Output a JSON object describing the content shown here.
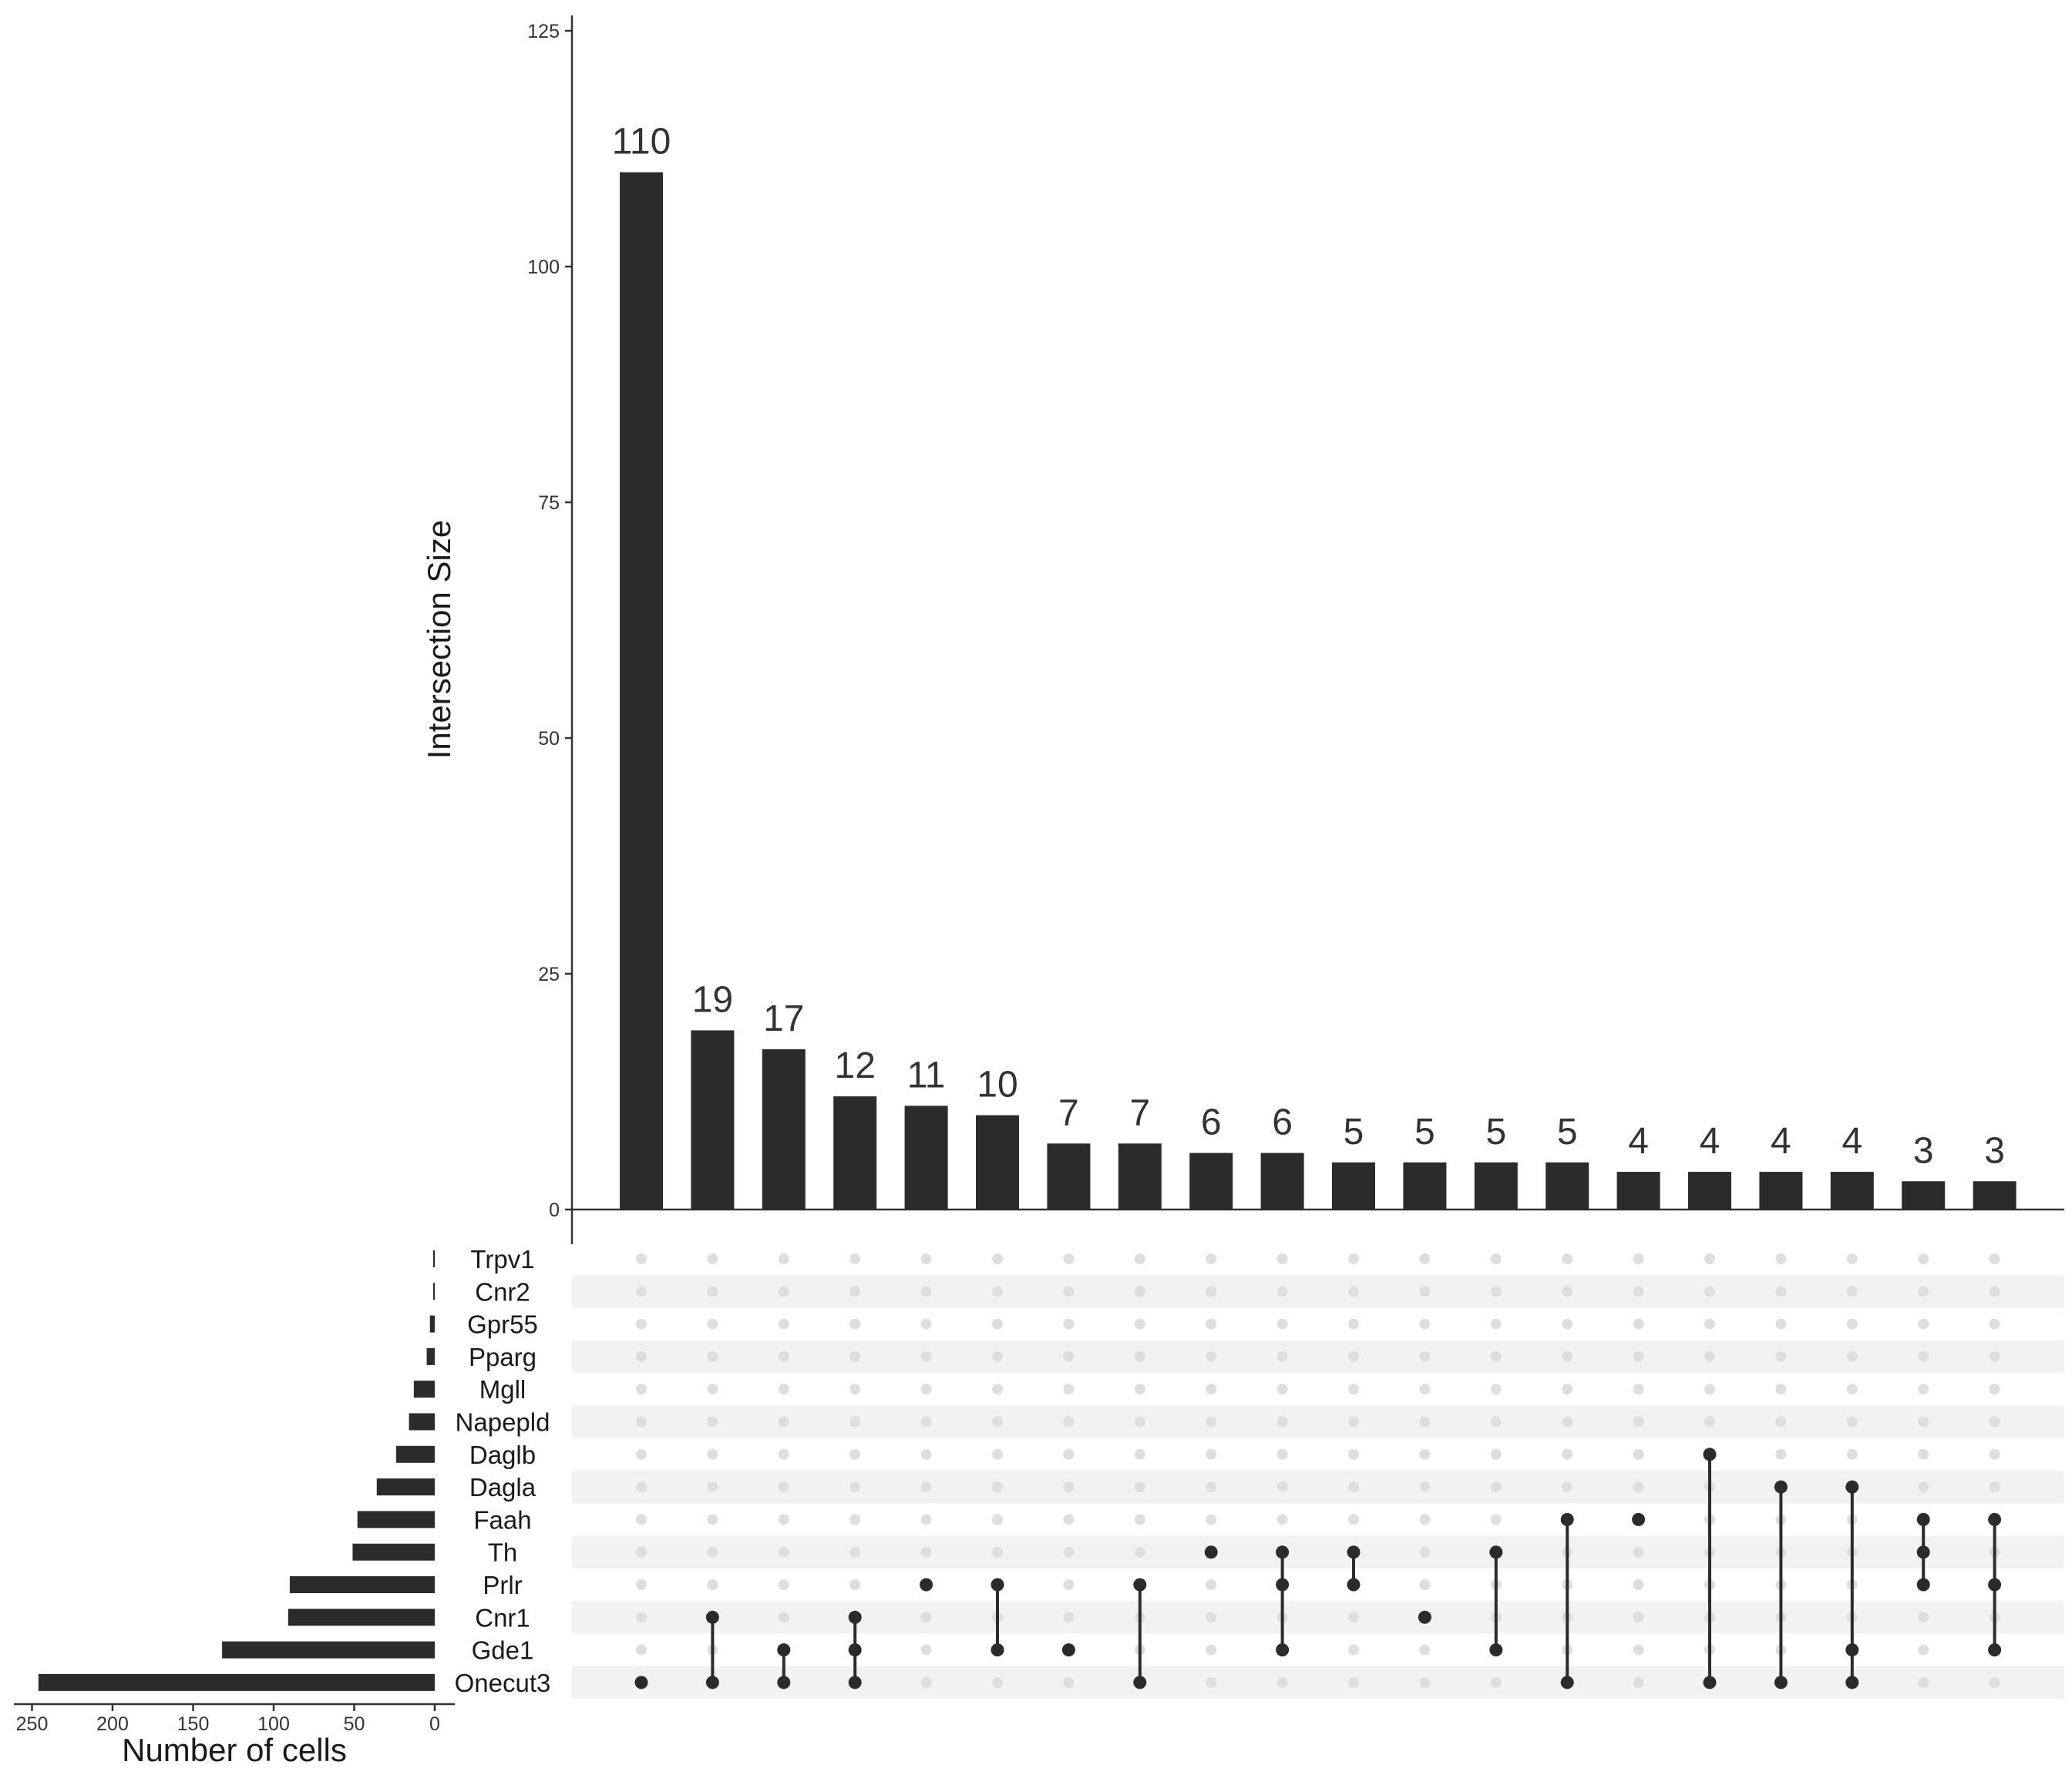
{
  "chart_data": {
    "type": "upset",
    "intersection_axis": {
      "title": "Intersection Size",
      "ylim": [
        0,
        125
      ],
      "ticks": [
        "0",
        "25",
        "50",
        "75",
        "100",
        "125"
      ]
    },
    "set_size_axis": {
      "title": "Number of cells",
      "xlim": [
        250,
        0
      ],
      "ticks": [
        "250",
        "200",
        "150",
        "100",
        "50",
        "0"
      ]
    },
    "sets": [
      "Trpv1",
      "Cnr2",
      "Gpr55",
      "Pparg",
      "Mgll",
      "Napepld",
      "Daglb",
      "Dagla",
      "Faah",
      "Th",
      "Prlr",
      "Cnr1",
      "Gde1",
      "Onecut3"
    ],
    "set_sizes": [
      1,
      1,
      3,
      5,
      13,
      16,
      24,
      36,
      48,
      51,
      90,
      91,
      132,
      246
    ],
    "intersections": [
      {
        "size": 110,
        "label": "110",
        "members": [
          "Onecut3"
        ]
      },
      {
        "size": 19,
        "label": "19",
        "members": [
          "Cnr1",
          "Onecut3"
        ]
      },
      {
        "size": 17,
        "label": "17",
        "members": [
          "Gde1",
          "Onecut3"
        ]
      },
      {
        "size": 12,
        "label": "12",
        "members": [
          "Cnr1",
          "Gde1",
          "Onecut3"
        ]
      },
      {
        "size": 11,
        "label": "11",
        "members": [
          "Prlr"
        ]
      },
      {
        "size": 10,
        "label": "10",
        "members": [
          "Prlr",
          "Gde1"
        ]
      },
      {
        "size": 7,
        "label": "7",
        "members": [
          "Gde1"
        ]
      },
      {
        "size": 7,
        "label": "7",
        "members": [
          "Prlr",
          "Onecut3"
        ]
      },
      {
        "size": 6,
        "label": "6",
        "members": [
          "Th"
        ]
      },
      {
        "size": 6,
        "label": "6",
        "members": [
          "Th",
          "Prlr",
          "Gde1"
        ]
      },
      {
        "size": 5,
        "label": "5",
        "members": [
          "Th",
          "Prlr"
        ]
      },
      {
        "size": 5,
        "label": "5",
        "members": [
          "Cnr1"
        ]
      },
      {
        "size": 5,
        "label": "5",
        "members": [
          "Th",
          "Gde1"
        ]
      },
      {
        "size": 5,
        "label": "5",
        "members": [
          "Faah",
          "Onecut3"
        ]
      },
      {
        "size": 4,
        "label": "4",
        "members": [
          "Faah"
        ]
      },
      {
        "size": 4,
        "label": "4",
        "members": [
          "Daglb",
          "Onecut3"
        ]
      },
      {
        "size": 4,
        "label": "4",
        "members": [
          "Dagla",
          "Onecut3"
        ]
      },
      {
        "size": 4,
        "label": "4",
        "members": [
          "Dagla",
          "Gde1",
          "Onecut3"
        ]
      },
      {
        "size": 3,
        "label": "3",
        "members": [
          "Faah",
          "Th",
          "Prlr"
        ]
      },
      {
        "size": 3,
        "label": "3",
        "members": [
          "Faah",
          "Prlr",
          "Gde1"
        ]
      }
    ],
    "colors": {
      "bar": "#2b2b2b",
      "dot_active": "#2b2b2b",
      "dot_inactive": "#dedede",
      "stripe": "#f2f2f2",
      "axis": "#333333",
      "text": "#333333"
    }
  }
}
